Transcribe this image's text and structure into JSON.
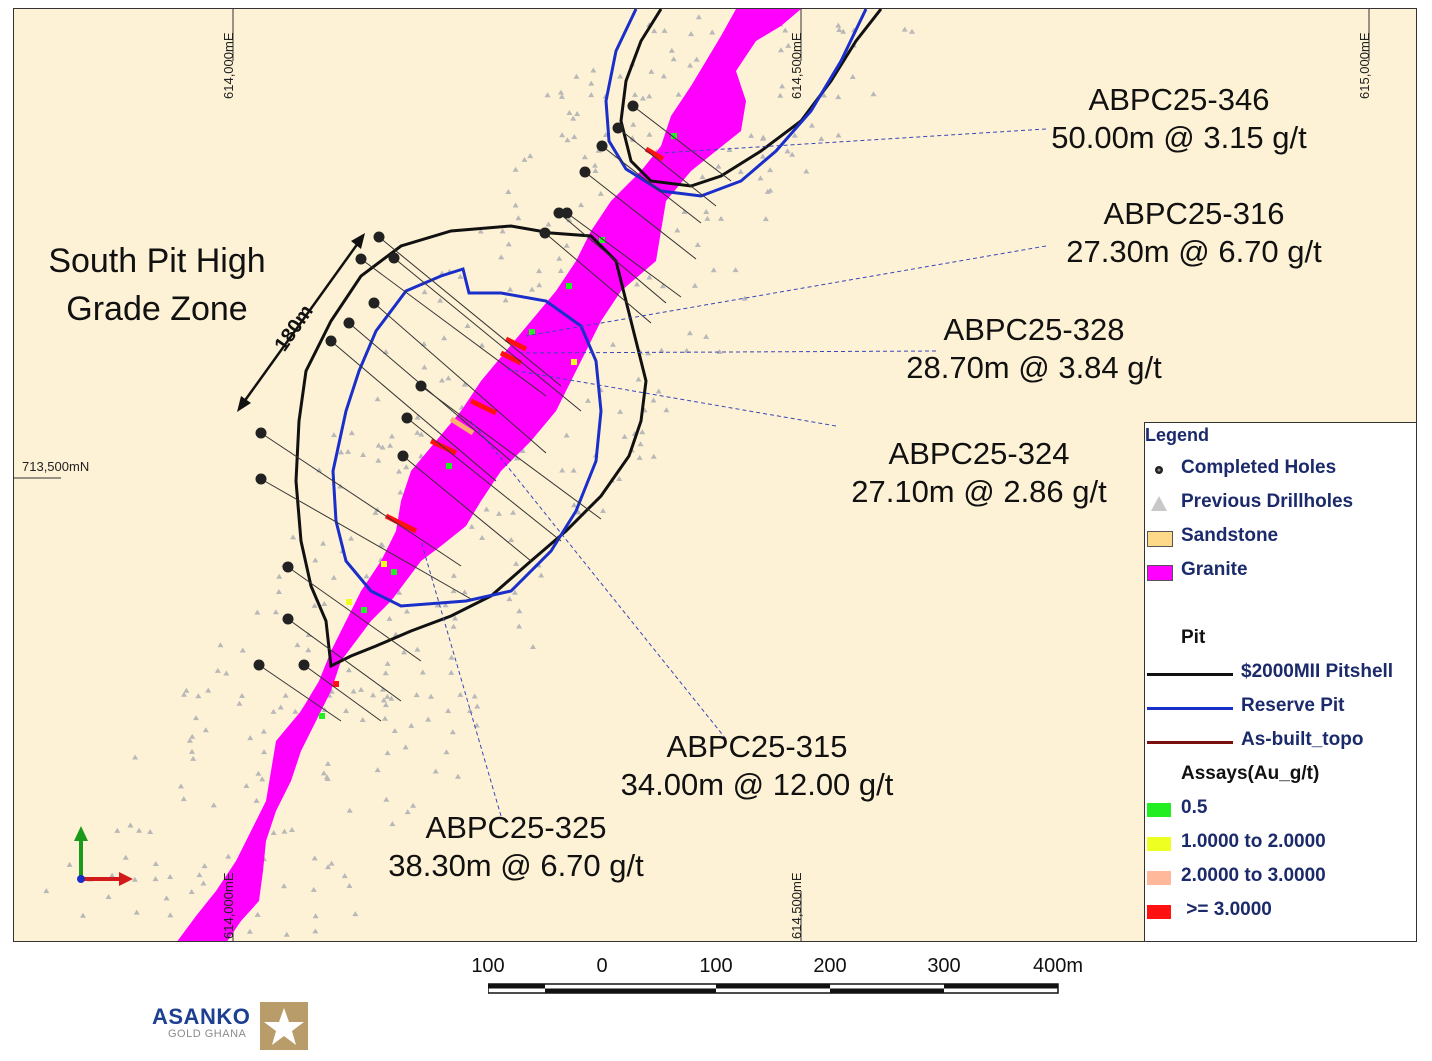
{
  "map": {
    "zone_title_line1": "South Pit High",
    "zone_title_line2": "Grade Zone",
    "distance_label": "180m",
    "grid_labels": {
      "e614000_top": "614,000mE",
      "e614500_top": "614,500mE",
      "e615000_top": "615,000mE",
      "n713500": "713,500mN",
      "e614000_bottom": "614,000mE",
      "e614500_bottom": "614,500mE"
    },
    "holes": [
      {
        "name": "ABPC25-346",
        "result": "50.00m @ 3.15 g/t"
      },
      {
        "name": "ABPC25-316",
        "result": "27.30m @ 6.70 g/t"
      },
      {
        "name": "ABPC25-328",
        "result": "28.70m @ 3.84 g/t"
      },
      {
        "name": "ABPC25-324",
        "result": "27.10m @ 2.86 g/t"
      },
      {
        "name": "ABPC25-315",
        "result": "34.00m @ 12.00 g/t"
      },
      {
        "name": "ABPC25-325",
        "result": "38.30m @ 6.70 g/t"
      }
    ],
    "colors": {
      "background": "#fef2d6",
      "granite": "#ff00ff",
      "pitshell": "#111111",
      "reserve_pit": "#1a2fc9",
      "asbuilt_topo": "#7a1010"
    }
  },
  "legend": {
    "title": "Legend",
    "items": [
      {
        "label": "Completed Holes",
        "icon": "black-dot-icon"
      },
      {
        "label": "Previous Drillholes",
        "icon": "grey-triangle-icon"
      },
      {
        "label": "Sandstone",
        "color": "#ffd98a"
      },
      {
        "label": "Granite",
        "color": "#ff00ff"
      }
    ],
    "pit_heading": "Pit",
    "pit_lines": [
      {
        "label": "$2000MII Pitshell",
        "color": "#111111"
      },
      {
        "label": "Reserve Pit",
        "color": "#1a2fc9"
      },
      {
        "label": "As-built_topo",
        "color": "#7a1010"
      }
    ],
    "assays_heading": "Assays(Au_g/t)",
    "assays": [
      {
        "label": "0.5",
        "color": "#22ee22"
      },
      {
        "label": "1.0000 to 2.0000",
        "color": "#eeff22"
      },
      {
        "label": "2.0000 to 3.0000",
        "color": "#ffb89a"
      },
      {
        "label": " >= 3.0000",
        "color": "#ff1111"
      }
    ]
  },
  "scalebar": {
    "labels": [
      "100",
      "0",
      "100",
      "200",
      "300",
      "400m"
    ]
  },
  "logo": {
    "brand": "ASANKO",
    "sub": "GOLD GHANA"
  }
}
